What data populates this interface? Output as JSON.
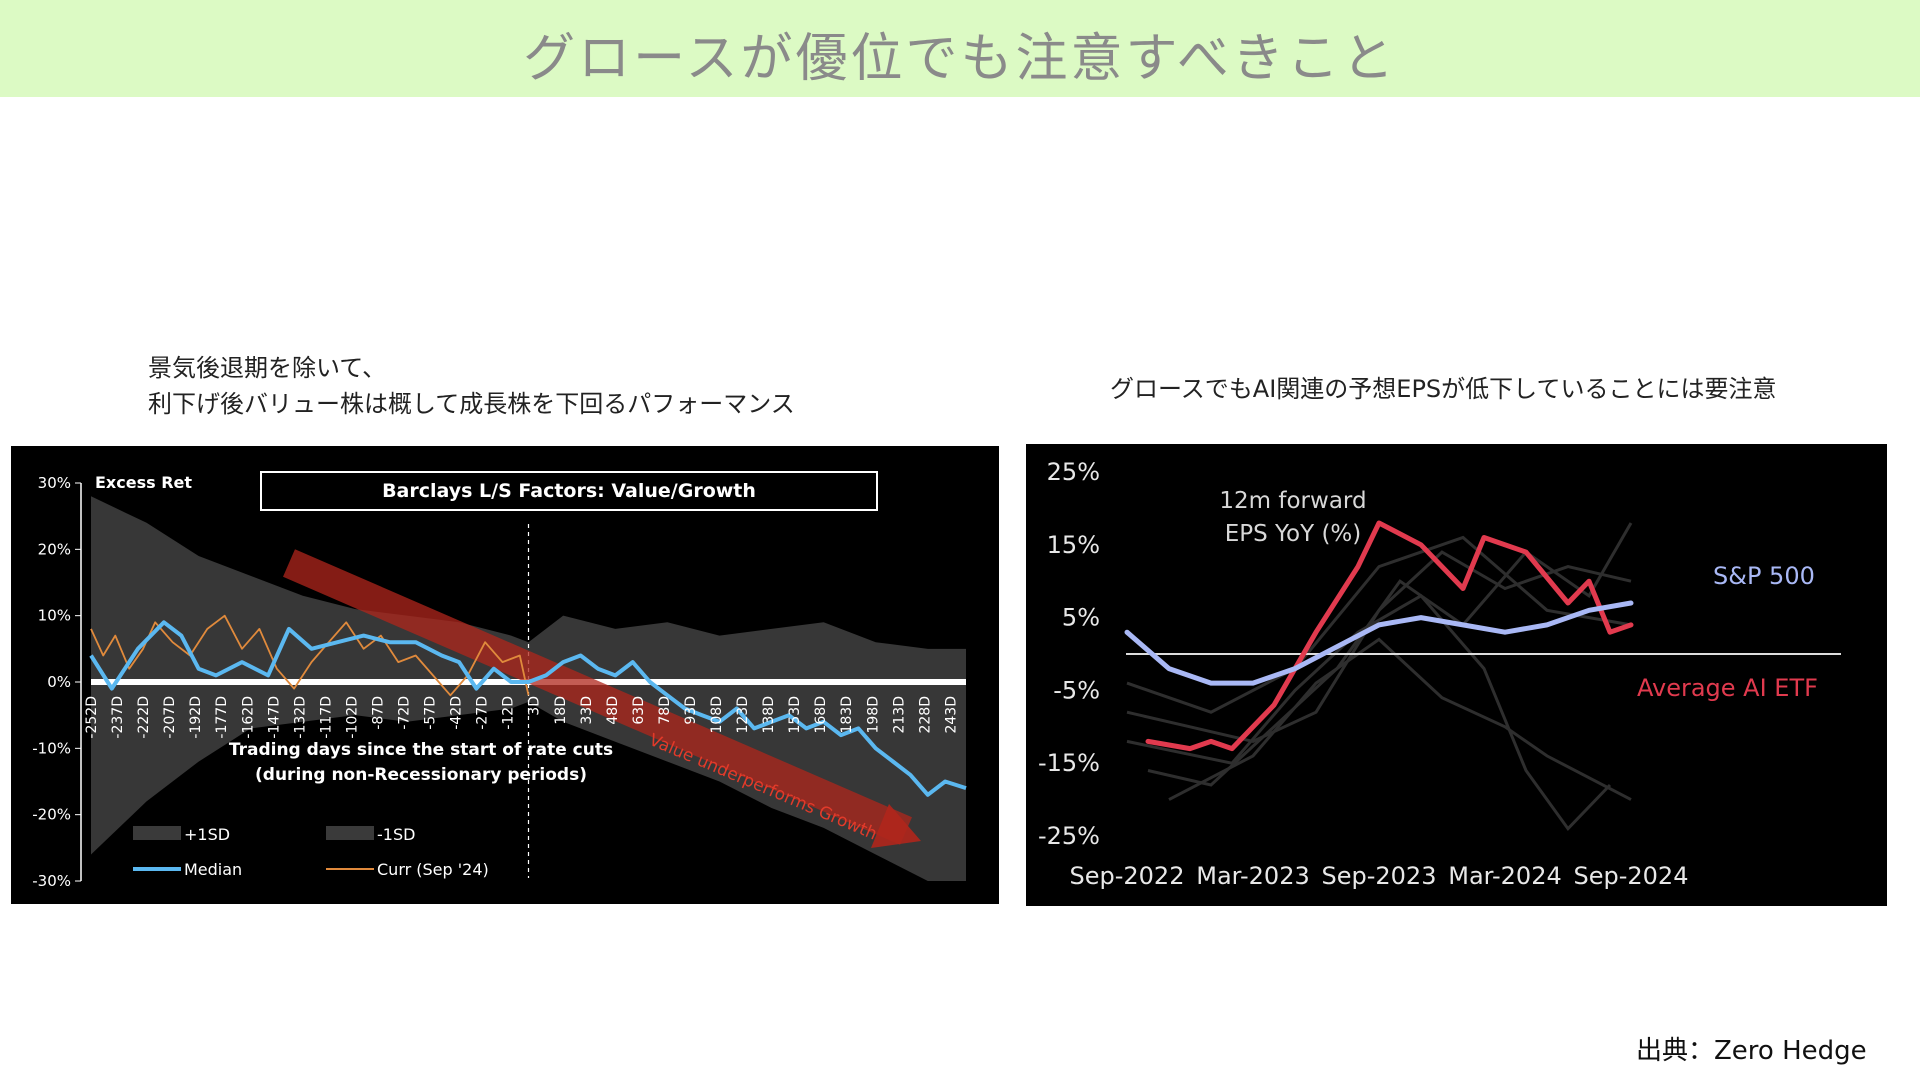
{
  "banner": {
    "title": "グロースが優位でも注意すべきこと",
    "bg_color": "#dcfac4"
  },
  "left": {
    "caption_line1": "景気後退期を除いて、",
    "caption_line2": "利下げ後バリュー株は概して成長株を下回るパフォーマンス"
  },
  "right": {
    "caption": "グロースでもAI関連の予想EPSが低下していることには要注意"
  },
  "source": "出典：Zero Hedge",
  "chart_data": [
    {
      "type": "line",
      "title": "Barclays L/S Factors: Value/Growth",
      "ylabel": "Excess Ret",
      "xlabel": "Trading days since the start of rate cuts\n(during non-Recessionary periods)",
      "xlim": [
        -252,
        252
      ],
      "ylim": [
        -30,
        30
      ],
      "yticks": [
        "30%",
        "20%",
        "10%",
        "0%",
        "-10%",
        "-20%",
        "-30%"
      ],
      "xticks": [
        "-252D",
        "-237D",
        "-222D",
        "-207D",
        "-192D",
        "-177D",
        "-162D",
        "-147D",
        "-132D",
        "-117D",
        "-102D",
        "-87D",
        "-72D",
        "-57D",
        "-42D",
        "-27D",
        "-12D",
        "3D",
        "18D",
        "33D",
        "48D",
        "63D",
        "78D",
        "93D",
        "108D",
        "123D",
        "138D",
        "153D",
        "168D",
        "183D",
        "198D",
        "213D",
        "228D",
        "243D"
      ],
      "annotation": "Value underperforms Growth",
      "legend": [
        "+1SD",
        "-1SD",
        "Median",
        "Curr (Sep '24)"
      ],
      "legend_placement": "bottom-left",
      "colors": {
        "median": "#5bb8f0",
        "curr": "#e08a3c",
        "band": "#3a3a3a",
        "arrow": "#b0261c"
      },
      "series": [
        {
          "name": "Median",
          "x": [
            -252,
            -240,
            -225,
            -210,
            -200,
            -190,
            -180,
            -165,
            -150,
            -138,
            -125,
            -110,
            -95,
            -80,
            -65,
            -50,
            -40,
            -30,
            -20,
            -10,
            0,
            10,
            20,
            30,
            40,
            50,
            60,
            70,
            80,
            90,
            100,
            110,
            120,
            130,
            140,
            150,
            160,
            170,
            180,
            190,
            200,
            210,
            220,
            230,
            240,
            252
          ],
          "values": [
            4,
            -1,
            5,
            9,
            7,
            2,
            1,
            3,
            1,
            8,
            5,
            6,
            7,
            6,
            6,
            4,
            3,
            -1,
            2,
            0,
            0,
            1,
            3,
            4,
            2,
            1,
            3,
            0,
            -2,
            -4,
            -5,
            -6,
            -4,
            -7,
            -6,
            -5,
            -7,
            -6,
            -8,
            -7,
            -10,
            -12,
            -14,
            -17,
            -15,
            -16
          ]
        },
        {
          "name": "Curr (Sep '24)",
          "x": [
            -252,
            -245,
            -238,
            -230,
            -222,
            -215,
            -205,
            -195,
            -185,
            -175,
            -165,
            -155,
            -145,
            -135,
            -125,
            -115,
            -105,
            -95,
            -85,
            -75,
            -65,
            -55,
            -45,
            -35,
            -25,
            -15,
            -5,
            0
          ],
          "values": [
            8,
            4,
            7,
            2,
            5,
            9,
            6,
            4,
            8,
            10,
            5,
            8,
            2,
            -1,
            3,
            6,
            9,
            5,
            7,
            3,
            4,
            1,
            -2,
            1,
            6,
            3,
            4,
            -2
          ]
        },
        {
          "name": "+1SD",
          "x": [
            -252,
            -220,
            -190,
            -160,
            -130,
            -100,
            -70,
            -40,
            -10,
            0,
            20,
            50,
            80,
            110,
            140,
            170,
            200,
            230,
            252
          ],
          "values": [
            28,
            24,
            19,
            16,
            13,
            11,
            10,
            9,
            7,
            6,
            10,
            8,
            9,
            7,
            8,
            9,
            6,
            5,
            5
          ]
        },
        {
          "name": "-1SD",
          "x": [
            -252,
            -220,
            -190,
            -160,
            -130,
            -100,
            -70,
            -40,
            -10,
            0,
            20,
            50,
            80,
            110,
            140,
            170,
            200,
            230,
            252
          ],
          "values": [
            -26,
            -18,
            -12,
            -7,
            -6,
            -5,
            -6,
            -5,
            -4,
            -3,
            -6,
            -9,
            -12,
            -15,
            -19,
            -22,
            -26,
            -30,
            -30
          ]
        }
      ]
    },
    {
      "type": "line",
      "ylabel": "12m forward\nEPS YoY (%)",
      "categories": [
        "Sep-2022",
        "Mar-2023",
        "Sep-2023",
        "Mar-2024",
        "Sep-2024"
      ],
      "ylim": [
        -25,
        25
      ],
      "yticks": [
        "25%",
        "15%",
        "5%",
        "-5%",
        "-15%",
        "-25%"
      ],
      "colors": {
        "sp500": "#a9b8f5",
        "ai_etf": "#e13a4e",
        "zero": "#dddddd"
      },
      "series": [
        {
          "name": "S&P 500",
          "x": [
            "2022-09",
            "2022-11",
            "2023-01",
            "2023-03",
            "2023-05",
            "2023-07",
            "2023-09",
            "2023-11",
            "2024-01",
            "2024-03",
            "2024-05",
            "2024-07",
            "2024-09"
          ],
          "values": [
            3,
            -2,
            -4,
            -4,
            -2,
            1,
            4,
            5,
            4,
            3,
            4,
            6,
            7
          ]
        },
        {
          "name": "Average AI ETF",
          "x": [
            "2022-10",
            "2022-12",
            "2023-01",
            "2023-02",
            "2023-04",
            "2023-06",
            "2023-08",
            "2023-09",
            "2023-11",
            "2024-01",
            "2024-02",
            "2024-04",
            "2024-06",
            "2024-07",
            "2024-08",
            "2024-09"
          ],
          "values": [
            -12,
            -13,
            -12,
            -13,
            -7,
            3,
            12,
            18,
            15,
            9,
            16,
            14,
            7,
            10,
            3,
            4
          ]
        }
      ]
    }
  ]
}
